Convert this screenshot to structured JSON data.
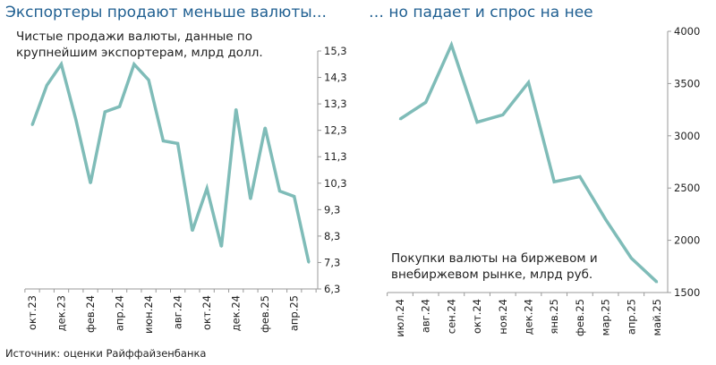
{
  "titles": {
    "left": "Экспортеры продают меньше валюты...",
    "right": "… но падает и спрос на нее"
  },
  "source": "Источник: оценки Райффайзенбанка",
  "colors": {
    "line": "#7fbcb8",
    "axis": "#999999",
    "title": "#1f5f91"
  },
  "chart_data": [
    {
      "type": "line",
      "title": "Чистые продажи валюты, данные по крупнейшим экспортерам, млрд долл.",
      "title_lines": [
        "Чистые продажи валюты, данные по",
        "крупнейшим экспортерам, млрд долл."
      ],
      "y_axis_position": "right",
      "ylim": [
        6.3,
        15.3
      ],
      "yticks": [
        "6,3",
        "7,3",
        "8,3",
        "9,3",
        "10,3",
        "11,3",
        "12,3",
        "13,3",
        "14,3",
        "15,3"
      ],
      "ytick_values": [
        6.3,
        7.3,
        8.3,
        9.3,
        10.3,
        11.3,
        12.3,
        13.3,
        14.3,
        15.3
      ],
      "x": [
        "окт.23",
        "ноя.23",
        "дек.23",
        "янв.24",
        "фев.24",
        "мар.24",
        "апр.24",
        "май.24",
        "июн.24",
        "июл.24",
        "авг.24",
        "сен.24",
        "окт.24",
        "ноя.24",
        "дек.24",
        "янв.25",
        "фев.25",
        "мар.25",
        "апр.25",
        "май.25"
      ],
      "xtick_labels": [
        "окт.23",
        "",
        "дек.23",
        "",
        "фев.24",
        "",
        "апр.24",
        "",
        "июн.24",
        "",
        "авг.24",
        "",
        "окт.24",
        "",
        "дек.24",
        "",
        "фев.25",
        "",
        "апр.25",
        ""
      ],
      "series": [
        {
          "values": [
            12.5,
            14.0,
            14.8,
            12.7,
            10.3,
            13.0,
            13.2,
            14.8,
            14.2,
            11.9,
            11.8,
            8.5,
            10.1,
            7.9,
            13.1,
            9.7,
            12.4,
            10.0,
            9.8,
            7.3
          ]
        }
      ],
      "grid": false
    },
    {
      "type": "line",
      "title": "Покупки валюты на биржевом и внебиржевом рынке, млрд руб.",
      "title_lines": [
        "Покупки валюты на биржевом и",
        "внебиржевом рынке, млрд руб."
      ],
      "y_axis_position": "right",
      "ylim": [
        1500,
        4000
      ],
      "yticks": [
        "1500",
        "2000",
        "2500",
        "3000",
        "3500",
        "4000"
      ],
      "ytick_values": [
        1500,
        2000,
        2500,
        3000,
        3500,
        4000
      ],
      "x": [
        "июл.24",
        "авг.24",
        "сен.24",
        "окт.24",
        "ноя.24",
        "дек.24",
        "янв.25",
        "фев.25",
        "мар.25",
        "апр.25",
        "май.25"
      ],
      "xtick_labels": [
        "июл.24",
        "авг.24",
        "сен.24",
        "окт.24",
        "ноя.24",
        "дек.24",
        "янв.25",
        "фев.25",
        "мар.25",
        "апр.25",
        "май.25"
      ],
      "series": [
        {
          "values": [
            3160,
            3320,
            3870,
            3130,
            3200,
            3510,
            2560,
            2610,
            2200,
            1830,
            1600
          ]
        }
      ],
      "grid": false
    }
  ]
}
